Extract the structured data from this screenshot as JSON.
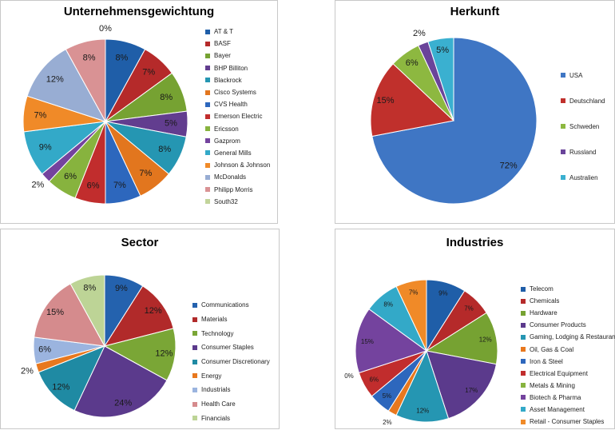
{
  "chart_data": [
    {
      "type": "pie",
      "title": "Unternehmensgewichtung",
      "legend_position": "right",
      "categories": [
        "AT & T",
        "BASF",
        "Bayer",
        "BHP Billiton",
        "Blackrock",
        "Cisco Systems",
        "CVS Health",
        "Emerson Electric",
        "Ericsson",
        "Gazprom",
        "General Mills",
        "Johnson & Johnson",
        "McDonalds",
        "Philipp Morris",
        "South32"
      ],
      "values": [
        8,
        7,
        8,
        5,
        8,
        7,
        7,
        6,
        6,
        2,
        9,
        7,
        12,
        8,
        0
      ],
      "labels": [
        "8%",
        "7%",
        "8%",
        "5%",
        "8%",
        "7%",
        "7%",
        "6%",
        "6%",
        "2%",
        "9%",
        "7%",
        "12%",
        "8%",
        "0%"
      ],
      "colors": [
        "#1f5ea8",
        "#b52a2a",
        "#76a232",
        "#623d8f",
        "#2596b2",
        "#e2761e",
        "#2d67bd",
        "#c12d2d",
        "#87b33e",
        "#74439e",
        "#33a9c8",
        "#f08a28",
        "#98add3",
        "#d99294",
        "#c2d49a"
      ]
    },
    {
      "type": "pie",
      "title": "Herkunft",
      "legend_position": "right",
      "categories": [
        "USA",
        "Deutschland",
        "Schweden",
        "Russland",
        "Australien"
      ],
      "values": [
        72,
        15,
        6,
        2,
        5
      ],
      "labels": [
        "72%",
        "15%",
        "6%",
        "2%",
        "5%"
      ],
      "colors": [
        "#3f76c4",
        "#c0302c",
        "#8db840",
        "#6a449a",
        "#3ab0d0"
      ]
    },
    {
      "type": "pie",
      "title": "Sector",
      "legend_position": "right",
      "categories": [
        "Communications",
        "Materials",
        "Technology",
        "Consumer Staples",
        "Consumer Discretionary",
        "Energy",
        "Industrials",
        "Health Care",
        "Financials"
      ],
      "values": [
        9,
        12,
        12,
        24,
        12,
        2,
        6,
        15,
        8
      ],
      "labels": [
        "9%",
        "12%",
        "12%",
        "24%",
        "12%",
        "2%",
        "6%",
        "15%",
        "8%"
      ],
      "colors": [
        "#2462ae",
        "#b12a2a",
        "#7aa636",
        "#5b3a8c",
        "#1f8aa3",
        "#e8781e",
        "#9bb4df",
        "#d58b8d",
        "#bdd496"
      ]
    },
    {
      "type": "pie",
      "title": "Industries",
      "legend_position": "right",
      "categories": [
        "Telecom",
        "Chemicals",
        "Hardware",
        "Consumer Products",
        "Gaming, Lodging & Restaurants",
        "Oil, Gas & Coal",
        "Iron & Steel",
        "Electrical Equipment",
        "Metals & Mining",
        "Biotech & Pharma",
        "Asset Management",
        "Retail - Consumer Staples"
      ],
      "values": [
        9,
        7,
        12,
        17,
        12,
        2,
        5,
        6,
        0,
        15,
        8,
        7
      ],
      "labels": [
        "9%",
        "7%",
        "12%",
        "17%",
        "12%",
        "2%",
        "5%",
        "6%",
        "0%",
        "15%",
        "8%",
        "7%"
      ],
      "colors": [
        "#1f5ea8",
        "#b52a2a",
        "#76a232",
        "#5b3a8c",
        "#2596b2",
        "#e8781e",
        "#2d67bd",
        "#c12d2d",
        "#87b33e",
        "#74439e",
        "#33a9c8",
        "#f08a28"
      ]
    }
  ]
}
